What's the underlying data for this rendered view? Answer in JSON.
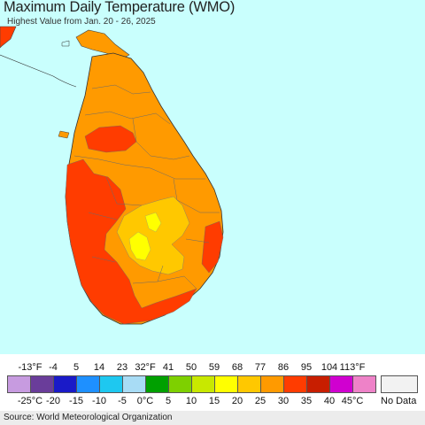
{
  "map": {
    "title": "Maximum Daily Temperature (WMO)",
    "subtitle": "Highest Value from Jan. 20 - 26, 2025",
    "background_color": "#c9fffd"
  },
  "legend": {
    "fahrenheit_labels": [
      "-13°F",
      "-4",
      "5",
      "14",
      "23",
      "32°F",
      "41",
      "50",
      "59",
      "68",
      "77",
      "86",
      "95",
      "104",
      "113°F"
    ],
    "celsius_labels": [
      "-25°C",
      "-20",
      "-15",
      "-10",
      "-5",
      "0°C",
      "5",
      "10",
      "15",
      "20",
      "25",
      "30",
      "35",
      "40",
      "45°C"
    ],
    "colors": [
      "#c79be0",
      "#6a3d9a",
      "#1a1ac8",
      "#1e90ff",
      "#1ec8f0",
      "#a8dcf5",
      "#00a000",
      "#7ed000",
      "#c8e800",
      "#ffff00",
      "#ffc800",
      "#ff9a00",
      "#ff3c00",
      "#c81e00",
      "#d000d0",
      "#ee82c8"
    ],
    "no_data_label": "No Data",
    "no_data_color": "#f2f2f2"
  },
  "footer": {
    "source": "Source: World Meteorological Organization"
  }
}
